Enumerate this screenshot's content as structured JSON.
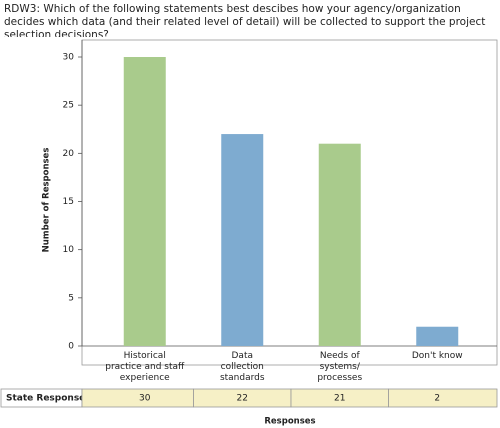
{
  "chart_data": {
    "type": "bar",
    "title": "RDW3: Which of the following statements best descibes how your agency/organization decides which data (and their related level of detail) will be collected to support the project selection decisions?",
    "categories": [
      "Historical practice and staff experience",
      "Data collection standards",
      "Needs of systems/ processes",
      "Don't know"
    ],
    "values": [
      30,
      22,
      21,
      2
    ],
    "colors": [
      "#a9cb8c",
      "#7eabd0",
      "#a9cb8c",
      "#7eabd0"
    ],
    "y_label": "Number of Responses",
    "x_label": "Responses",
    "table_row_label": "State Responses",
    "ylim": [
      0,
      30
    ],
    "yticks": [
      0,
      5,
      10,
      15,
      20,
      25,
      30
    ]
  }
}
